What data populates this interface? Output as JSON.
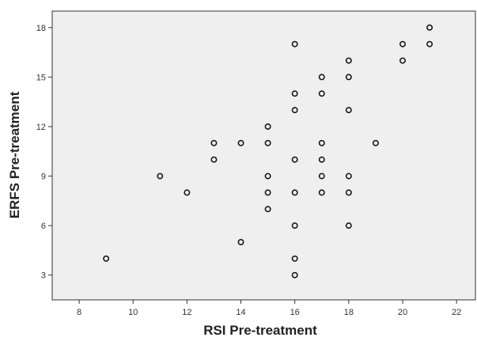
{
  "chart_data": {
    "type": "scatter",
    "xlabel": "RSI Pre-treatment",
    "ylabel": "ERFS Pre-treatment",
    "xlim": [
      7,
      22.7
    ],
    "ylim": [
      1.5,
      19
    ],
    "x_ticks": [
      8,
      10,
      12,
      14,
      16,
      18,
      20,
      22
    ],
    "y_ticks": [
      3,
      6,
      9,
      12,
      15,
      18
    ],
    "grid": false,
    "legend": "none",
    "colors": {
      "plot_background": "#efefef",
      "marker": "#1a1a1a",
      "axis": "#333333"
    },
    "series": [
      {
        "points": [
          {
            "x": 9,
            "y": 4
          },
          {
            "x": 11,
            "y": 9
          },
          {
            "x": 12,
            "y": 8
          },
          {
            "x": 13,
            "y": 11
          },
          {
            "x": 13,
            "y": 10
          },
          {
            "x": 14,
            "y": 11
          },
          {
            "x": 14,
            "y": 5
          },
          {
            "x": 15,
            "y": 12
          },
          {
            "x": 15,
            "y": 11
          },
          {
            "x": 15,
            "y": 9
          },
          {
            "x": 15,
            "y": 8
          },
          {
            "x": 15,
            "y": 7
          },
          {
            "x": 16,
            "y": 17
          },
          {
            "x": 16,
            "y": 14
          },
          {
            "x": 16,
            "y": 13
          },
          {
            "x": 16,
            "y": 10
          },
          {
            "x": 16,
            "y": 8
          },
          {
            "x": 16,
            "y": 6
          },
          {
            "x": 16,
            "y": 4
          },
          {
            "x": 16,
            "y": 3
          },
          {
            "x": 17,
            "y": 15
          },
          {
            "x": 17,
            "y": 14
          },
          {
            "x": 17,
            "y": 11
          },
          {
            "x": 17,
            "y": 10
          },
          {
            "x": 17,
            "y": 9
          },
          {
            "x": 17,
            "y": 8
          },
          {
            "x": 18,
            "y": 16
          },
          {
            "x": 18,
            "y": 15
          },
          {
            "x": 18,
            "y": 13
          },
          {
            "x": 18,
            "y": 9
          },
          {
            "x": 18,
            "y": 8
          },
          {
            "x": 18,
            "y": 6
          },
          {
            "x": 19,
            "y": 11
          },
          {
            "x": 20,
            "y": 17
          },
          {
            "x": 20,
            "y": 16
          },
          {
            "x": 21,
            "y": 18
          },
          {
            "x": 21,
            "y": 17
          }
        ]
      }
    ]
  }
}
